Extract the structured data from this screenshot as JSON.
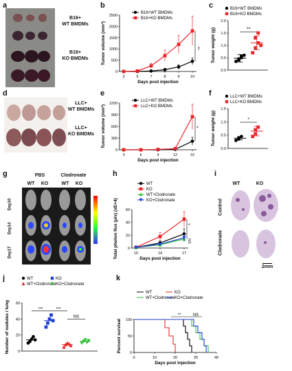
{
  "panels": {
    "a": {
      "label": "a",
      "groups": [
        {
          "line1": "B16+",
          "line2": "WT BMDMs"
        },
        {
          "line1": "B16+",
          "line2": "KO BMDMs"
        }
      ]
    },
    "b": {
      "label": "b",
      "chart_data": {
        "type": "line",
        "xlabel": "Days post injection",
        "ylabel": "Tumor volume (mm³)",
        "x": [
          3,
          5,
          7,
          8,
          9,
          10
        ],
        "ylim": [
          0,
          2500
        ],
        "yticks": [
          0,
          500,
          1000,
          1500,
          2000,
          2500
        ],
        "series": [
          {
            "name": "B16+WT BMDMs",
            "color": "#000000",
            "marker": "circle",
            "values": [
              0,
              0,
              20,
              80,
              200,
              450
            ],
            "err": [
              0,
              0,
              20,
              60,
              100,
              150
            ]
          },
          {
            "name": "B16+KO BMDMs",
            "color": "#e8262a",
            "marker": "square",
            "values": [
              0,
              20,
              250,
              700,
              1200,
              1800
            ],
            "err": [
              0,
              20,
              100,
              250,
              400,
              650
            ]
          }
        ],
        "annotation": "**"
      }
    },
    "c": {
      "label": "c",
      "chart_data": {
        "type": "scatter",
        "ylabel": "Tumor weight (g)",
        "ylim": [
          0.0,
          2.0
        ],
        "yticks": [
          "0.0",
          "0.5",
          "1.0",
          "1.5",
          "2.0"
        ],
        "series": [
          {
            "name": "B16+WT BMDMs",
            "color": "#000000",
            "marker": "circle",
            "values": [
              0.35,
              0.45,
              0.5,
              0.4,
              0.55,
              0.6
            ],
            "mean": 0.48,
            "sd": 0.15
          },
          {
            "name": "B16+KO BMDMs",
            "color": "#e8262a",
            "marker": "square",
            "values": [
              0.7,
              0.9,
              1.1,
              1.3,
              1.5,
              1.0
            ],
            "mean": 1.1,
            "sd": 0.28
          }
        ],
        "annotation": "**"
      }
    },
    "d": {
      "label": "d",
      "groups": [
        {
          "line1": "LLC+",
          "line2": "WT BMDMs"
        },
        {
          "line1": "LLC+",
          "line2": "KO BMDMs"
        }
      ]
    },
    "e": {
      "label": "e",
      "chart_data": {
        "type": "line",
        "xlabel": "Days post injection",
        "ylabel": "Tumor volume (mm³)",
        "x": [
          3,
          6,
          9,
          12,
          15
        ],
        "ylim": [
          0,
          1200
        ],
        "yticks": [
          0,
          300,
          600,
          900,
          1200
        ],
        "series": [
          {
            "name": "LLC+WT BMDMs",
            "color": "#000000",
            "marker": "circle",
            "values": [
              0,
              0,
              0,
              10,
              220
            ],
            "err": [
              0,
              0,
              0,
              10,
              100
            ]
          },
          {
            "name": "LLC+KO BMDMs",
            "color": "#e8262a",
            "marker": "square",
            "values": [
              0,
              0,
              10,
              30,
              850
            ],
            "err": [
              0,
              0,
              10,
              20,
              320
            ]
          }
        ],
        "annotation": "*"
      }
    },
    "f": {
      "label": "f",
      "chart_data": {
        "type": "scatter",
        "ylabel": "Tumor weight (g)",
        "ylim": [
          0.0,
          1.5
        ],
        "yticks": [
          "0.0",
          "0.5",
          "1.0",
          "1.5"
        ],
        "series": [
          {
            "name": "LLC+WT BMDMs",
            "color": "#000000",
            "marker": "circle",
            "values": [
              0.3,
              0.4,
              0.45,
              0.35
            ],
            "mean": 0.38,
            "sd": 0.06
          },
          {
            "name": "LLC+KO BMDMs",
            "color": "#e8262a",
            "marker": "square",
            "values": [
              0.45,
              0.7,
              0.8,
              0.55
            ],
            "mean": 0.65,
            "sd": 0.18
          }
        ],
        "annotation": "*"
      }
    },
    "g": {
      "label": "g",
      "top_labels": [
        "PBS",
        "Clodronate"
      ],
      "cols": [
        "WT",
        "KO",
        "WT",
        "KO"
      ],
      "rows": [
        "Day10",
        "Day14",
        "Day17"
      ]
    },
    "h": {
      "label": "h",
      "chart_data": {
        "type": "line",
        "xlabel": "Days post injection",
        "ylabel": "Total photon flux (p/s) (xE+4)",
        "x": [
          10,
          14,
          17
        ],
        "ylim": [
          0,
          60
        ],
        "yticks": [
          0,
          20,
          40,
          60
        ],
        "series": [
          {
            "name": "WT",
            "color": "#000000",
            "marker": "circle",
            "values": [
              1,
              8,
              22
            ],
            "err": [
              0.5,
              3,
              8
            ]
          },
          {
            "name": "KO",
            "color": "#e8262a",
            "marker": "square",
            "values": [
              1,
              18,
              45
            ],
            "err": [
              0.5,
              6,
              12
            ]
          },
          {
            "name": "WT+Clodronate",
            "color": "#2fbf3a",
            "marker": "triangle",
            "values": [
              1,
              5,
              14
            ],
            "err": [
              0.5,
              2,
              4
            ]
          },
          {
            "name": "KO+Clodronate",
            "color": "#1f3fd6",
            "marker": "triangle-down",
            "values": [
              1,
              6,
              16
            ],
            "err": [
              0.5,
              2,
              5
            ]
          }
        ],
        "annotations": [
          "*",
          "NS"
        ]
      }
    },
    "i": {
      "label": "i",
      "cols": [
        "WT",
        "KO"
      ],
      "rows": [
        "Control",
        "Clodronate"
      ],
      "scalebar": "2mm"
    },
    "j": {
      "label": "j",
      "chart_data": {
        "type": "scatter",
        "ylabel": "Number of nodules / lung",
        "ylim": [
          0,
          60
        ],
        "yticks": [
          0,
          20,
          40,
          60
        ],
        "legend": [
          {
            "name": "WT",
            "color": "#000000",
            "marker": "circle"
          },
          {
            "name": "KO",
            "color": "#1f3fd6",
            "marker": "square"
          },
          {
            "name": "WT+Clodronate",
            "color": "#e8262a",
            "marker": "triangle"
          },
          {
            "name": "KO+Clodronate",
            "color": "#2fbf3a",
            "marker": "triangle-down"
          }
        ],
        "groups": [
          {
            "name": "WT",
            "color": "#000000",
            "marker": "circle",
            "values": [
              10,
              12,
              15,
              18,
              14
            ],
            "mean": 14
          },
          {
            "name": "KO",
            "color": "#1f3fd6",
            "marker": "square",
            "values": [
              30,
              35,
              40,
              45,
              38
            ],
            "mean": 38
          },
          {
            "name": "WT+Clodronate",
            "color": "#e8262a",
            "marker": "triangle",
            "values": [
              5,
              8,
              10,
              9,
              7
            ],
            "mean": 8
          },
          {
            "name": "KO+Clodronate",
            "color": "#2fbf3a",
            "marker": "triangle-down",
            "values": [
              10,
              12,
              14,
              11,
              13
            ],
            "mean": 12
          }
        ],
        "annotations": [
          "***",
          "***",
          "NS"
        ]
      }
    },
    "k": {
      "label": "k",
      "chart_data": {
        "type": "line",
        "xlabel": "Days post injection",
        "ylabel": "Percent survival",
        "xlim": [
          0,
          40
        ],
        "xticks": [
          0,
          10,
          20,
          30,
          40
        ],
        "ylim": [
          0,
          100
        ],
        "yticks": [
          0,
          50,
          100
        ],
        "series": [
          {
            "name": "WT",
            "color": "#000000",
            "steps": [
              [
                0,
                100
              ],
              [
                24,
                100
              ],
              [
                24,
                80
              ],
              [
                25,
                80
              ],
              [
                25,
                60
              ],
              [
                26,
                60
              ],
              [
                26,
                40
              ],
              [
                27,
                40
              ],
              [
                27,
                20
              ],
              [
                28,
                20
              ],
              [
                28,
                0
              ]
            ]
          },
          {
            "name": "KO",
            "color": "#e8262a",
            "steps": [
              [
                0,
                100
              ],
              [
                15,
                100
              ],
              [
                15,
                75
              ],
              [
                17,
                75
              ],
              [
                17,
                50
              ],
              [
                19,
                50
              ],
              [
                19,
                25
              ],
              [
                20,
                25
              ],
              [
                20,
                0
              ]
            ]
          },
          {
            "name": "WT+Clodronate",
            "color": "#2fbf3a",
            "steps": [
              [
                0,
                100
              ],
              [
                28,
                100
              ],
              [
                28,
                80
              ],
              [
                30,
                80
              ],
              [
                30,
                60
              ],
              [
                32,
                60
              ],
              [
                32,
                40
              ],
              [
                34,
                40
              ],
              [
                34,
                20
              ],
              [
                36,
                20
              ],
              [
                36,
                0
              ]
            ]
          },
          {
            "name": "KO+Clodronate",
            "color": "#1f3fd6",
            "steps": [
              [
                0,
                100
              ],
              [
                29,
                100
              ],
              [
                29,
                80
              ],
              [
                31,
                80
              ],
              [
                31,
                60
              ],
              [
                33,
                60
              ],
              [
                33,
                40
              ],
              [
                34,
                40
              ],
              [
                34,
                20
              ],
              [
                35,
                20
              ],
              [
                35,
                0
              ]
            ]
          }
        ],
        "annotations": [
          "**",
          "NS"
        ]
      }
    }
  }
}
